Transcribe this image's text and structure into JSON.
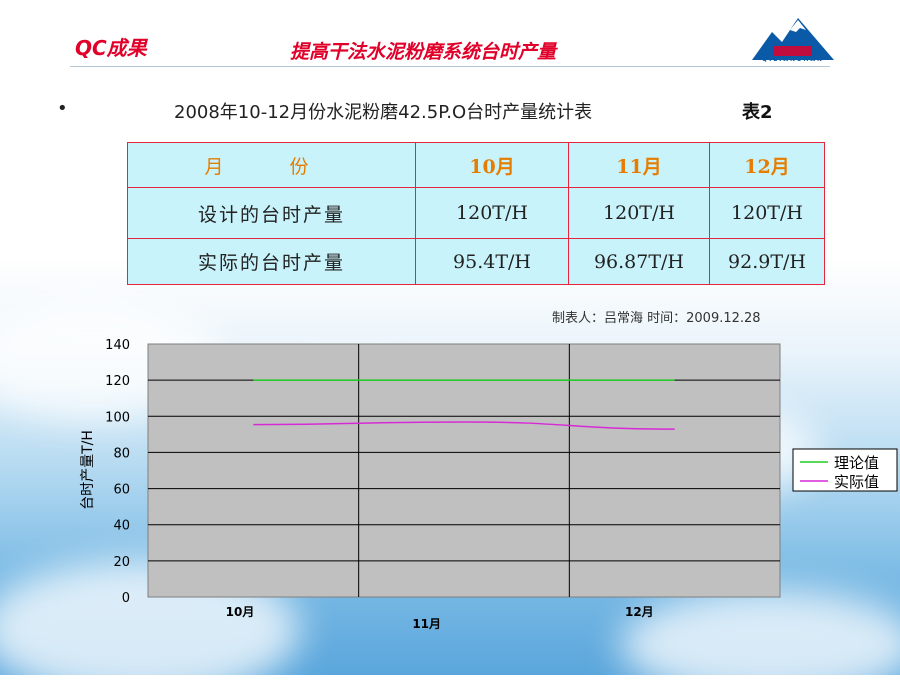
{
  "header": {
    "section": "QC成果",
    "title": "提高干法水泥粉磨系统台时产量",
    "logo_text": "QILIANSHAN"
  },
  "bullet": "•",
  "table": {
    "caption": "2008年10-12月份水泥粉磨42.5P.O台时产量统计表",
    "label": "表2",
    "header": [
      "月  份",
      "10月",
      "11月",
      "12月"
    ],
    "rows": [
      {
        "label": "设计的台时产量",
        "values": [
          "120T/H",
          "120T/H",
          "120T/H"
        ]
      },
      {
        "label": "实际的台时产量",
        "values": [
          "95.4T/H",
          "96.87T/H",
          "92.9T/H"
        ]
      }
    ],
    "credit": "制表人：吕常海  时间：2009.12.28"
  },
  "colors": {
    "accent_red": "#e0002a",
    "table_bg": "#c9f3fb",
    "month_orange": "#e57d00",
    "plot_bg": "#c0c0c0",
    "theory_line": "#22cc22",
    "actual_line": "#d62ad6"
  },
  "chart_data": {
    "type": "line",
    "categories": [
      "10月",
      "11月",
      "12月"
    ],
    "series": [
      {
        "name": "理论值",
        "values": [
          120,
          120,
          120
        ],
        "color": "#22cc22"
      },
      {
        "name": "实际值",
        "values": [
          95.4,
          96.87,
          92.9
        ],
        "color": "#d62ad6"
      }
    ],
    "ylabel": "台时产量T/H",
    "ylim": [
      0,
      140
    ],
    "yticks": [
      0,
      20,
      40,
      60,
      80,
      100,
      120,
      140
    ],
    "grid": true,
    "legend": "right"
  }
}
